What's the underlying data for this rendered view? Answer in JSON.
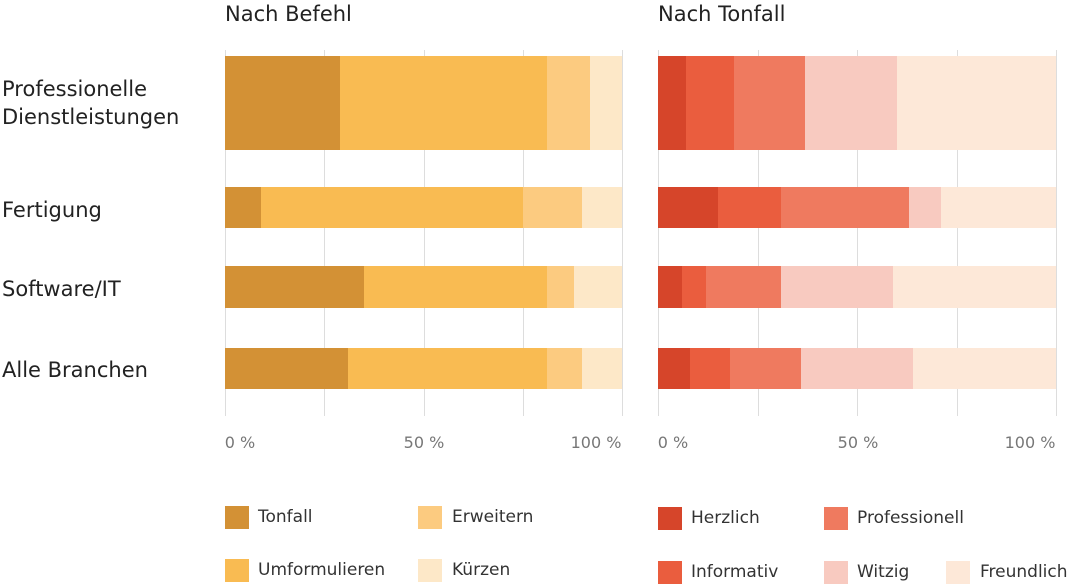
{
  "chart_data": [
    {
      "type": "bar",
      "orientation": "horizontal",
      "stacked": true,
      "title": "Nach Befehl",
      "categories": [
        "Professionelle Dienstleistungen",
        "Fertigung",
        "Software/IT",
        "Alle Branchen"
      ],
      "series": [
        {
          "name": "Tonfall",
          "color": "#d39135",
          "values": [
            29,
            9,
            35,
            31
          ]
        },
        {
          "name": "Umformulieren",
          "color": "#f9bb52",
          "values": [
            52,
            66,
            46,
            50
          ]
        },
        {
          "name": "Erweitern",
          "color": "#fccb80",
          "values": [
            11,
            15,
            7,
            9
          ]
        },
        {
          "name": "Kürzen",
          "color": "#fde8c8",
          "values": [
            8,
            10,
            12,
            10
          ]
        }
      ],
      "xlim": [
        0,
        100
      ],
      "xticks": [
        "0 %",
        "50 %",
        "100 %"
      ],
      "grid": true,
      "legend": "bottom"
    },
    {
      "type": "bar",
      "orientation": "horizontal",
      "stacked": true,
      "title": "Nach Tonfall",
      "categories": [
        "Professionelle Dienstleistungen",
        "Fertigung",
        "Software/IT",
        "Alle Branchen"
      ],
      "series": [
        {
          "name": "Herzlich",
          "color": "#d6452a",
          "values": [
            7,
            15,
            6,
            8
          ]
        },
        {
          "name": "Informativ",
          "color": "#ea5d3e",
          "values": [
            12,
            16,
            6,
            10
          ]
        },
        {
          "name": "Professionell",
          "color": "#ef7a5f",
          "values": [
            18,
            32,
            19,
            18
          ]
        },
        {
          "name": "Witzig",
          "color": "#f8cac0",
          "values": [
            23,
            8,
            28,
            28
          ]
        },
        {
          "name": "Freundlich",
          "color": "#fde8d8",
          "values": [
            40,
            29,
            41,
            36
          ]
        }
      ],
      "xlim": [
        0,
        100
      ],
      "xticks": [
        "0 %",
        "50 %",
        "100 %"
      ],
      "grid": true,
      "legend": "bottom"
    }
  ],
  "row_labels": [
    "Professionelle\nDienstleistungen",
    "Fertigung",
    "Software/IT",
    "Alle Branchen"
  ]
}
